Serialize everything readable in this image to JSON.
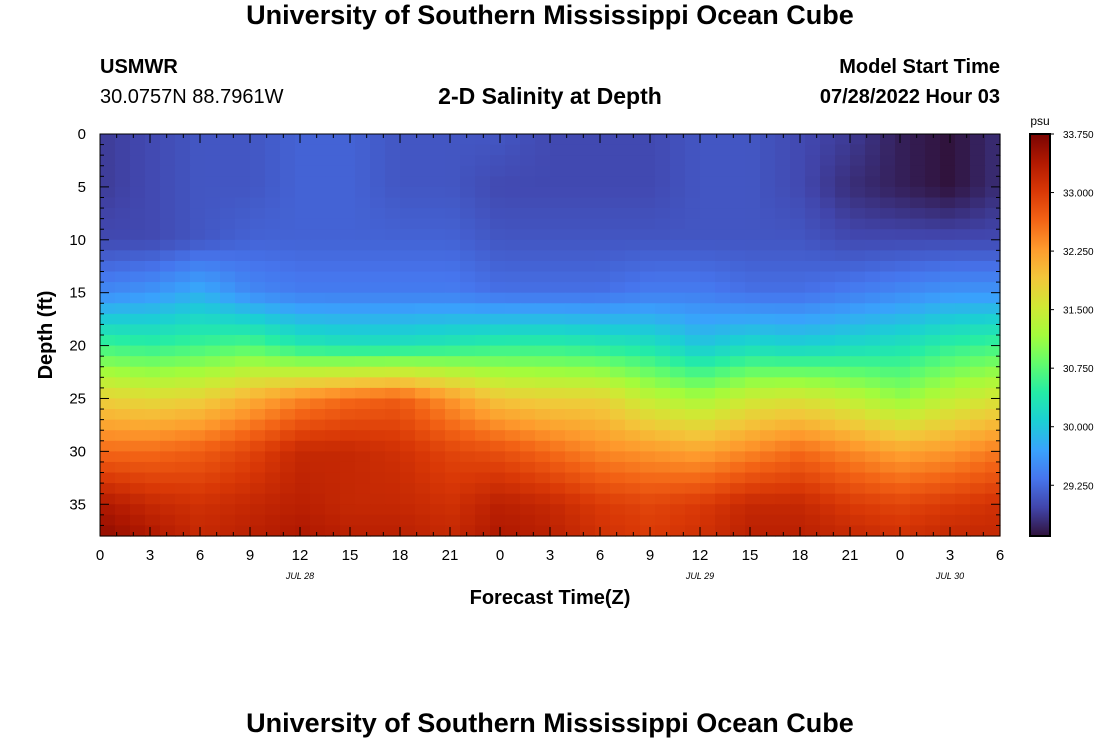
{
  "page": {
    "title": "University of Southern Mississippi Ocean Cube",
    "footer_title": "University of Southern Mississippi Ocean Cube"
  },
  "station": {
    "name": "USMWR",
    "coords": "30.0757N  88.7961W"
  },
  "model_start": {
    "label": "Model Start Time",
    "value": "07/28/2022 Hour 03"
  },
  "chart_data": {
    "type": "heatmap",
    "title": "2-D Salinity at Depth",
    "xlabel": "Forecast Time(Z)",
    "ylabel": "Depth (ft)",
    "x_tick_labels": [
      "0",
      "3",
      "6",
      "9",
      "12",
      "15",
      "18",
      "21",
      "0",
      "3",
      "6",
      "9",
      "12",
      "15",
      "18",
      "21",
      "0",
      "3",
      "6"
    ],
    "x_hours": [
      0,
      3,
      6,
      9,
      12,
      15,
      18,
      21,
      24,
      27,
      30,
      33,
      36,
      39,
      42,
      45,
      48,
      51,
      54
    ],
    "xlim": [
      0,
      54
    ],
    "date_labels": [
      {
        "text": "JUL 28",
        "hour": 12
      },
      {
        "text": "JUL 29",
        "hour": 36
      },
      {
        "text": "JUL 30",
        "hour": 51
      }
    ],
    "y_ticks": [
      0,
      5,
      10,
      15,
      20,
      25,
      30,
      35
    ],
    "ylim": [
      0,
      38
    ],
    "y_inverted": true,
    "colorbar": {
      "unit": "psu",
      "min": 28.6,
      "max": 33.75,
      "tick_values": [
        33.75,
        33.0,
        32.25,
        31.5,
        30.75,
        30.0,
        29.25
      ],
      "tick_labels": [
        "33.750",
        "33.000",
        "32.250",
        "31.500",
        "30.750",
        "30.000",
        "29.250"
      ]
    },
    "colormap": [
      "#30123b",
      "#4145ab",
      "#4675ed",
      "#39a2fc",
      "#1bcfd4",
      "#24eca6",
      "#61fc6c",
      "#a4fc3b",
      "#d1e834",
      "#f3c63a",
      "#fe9b2d",
      "#f36315",
      "#d93806",
      "#b11901",
      "#7a0402"
    ],
    "grid_hours": [
      0,
      3,
      6,
      9,
      12,
      15,
      18,
      21,
      24,
      27,
      30,
      33,
      36,
      39,
      42,
      45,
      48,
      51,
      54
    ],
    "grid_depths": [
      0,
      5,
      10,
      15,
      20,
      25,
      30,
      35,
      38
    ],
    "salinity_psu": [
      [
        28.9,
        29.0,
        29.1,
        29.1,
        29.2,
        29.2,
        29.1,
        29.1,
        29.1,
        29.0,
        29.0,
        29.0,
        29.1,
        29.1,
        29.0,
        28.9,
        28.7,
        28.6,
        28.8
      ],
      [
        28.9,
        29.0,
        29.1,
        29.1,
        29.2,
        29.2,
        29.1,
        29.1,
        29.0,
        29.0,
        29.0,
        29.0,
        29.1,
        29.1,
        29.0,
        28.8,
        28.7,
        28.6,
        28.8
      ],
      [
        29.0,
        29.0,
        29.1,
        29.2,
        29.2,
        29.2,
        29.2,
        29.2,
        29.1,
        29.1,
        29.1,
        29.1,
        29.1,
        29.1,
        29.1,
        29.0,
        29.0,
        29.0,
        29.0
      ],
      [
        29.5,
        29.6,
        29.8,
        29.5,
        29.4,
        29.4,
        29.4,
        29.4,
        29.3,
        29.3,
        29.3,
        29.4,
        29.4,
        29.3,
        29.3,
        29.4,
        29.5,
        29.6,
        29.6
      ],
      [
        30.6,
        30.5,
        30.6,
        30.7,
        30.4,
        30.3,
        30.3,
        30.4,
        30.5,
        30.5,
        30.4,
        30.3,
        30.0,
        30.2,
        30.1,
        30.2,
        30.3,
        30.5,
        30.6
      ],
      [
        31.8,
        31.7,
        31.8,
        32.1,
        32.4,
        32.6,
        32.7,
        32.3,
        31.9,
        31.8,
        31.8,
        31.4,
        31.2,
        31.5,
        31.6,
        31.4,
        31.1,
        31.4,
        31.6
      ],
      [
        32.6,
        32.6,
        32.7,
        32.9,
        33.2,
        33.2,
        33.1,
        32.9,
        32.8,
        32.6,
        32.4,
        32.3,
        32.2,
        32.4,
        32.6,
        32.4,
        32.2,
        32.3,
        32.5
      ],
      [
        33.4,
        33.2,
        33.1,
        33.2,
        33.3,
        33.2,
        33.2,
        33.1,
        33.3,
        33.2,
        33.0,
        32.9,
        33.0,
        33.2,
        33.2,
        33.0,
        32.9,
        33.0,
        33.1
      ],
      [
        33.6,
        33.4,
        33.2,
        33.3,
        33.4,
        33.3,
        33.3,
        33.2,
        33.4,
        33.3,
        33.1,
        33.0,
        33.1,
        33.3,
        33.3,
        33.2,
        33.1,
        33.2,
        33.2
      ]
    ]
  }
}
